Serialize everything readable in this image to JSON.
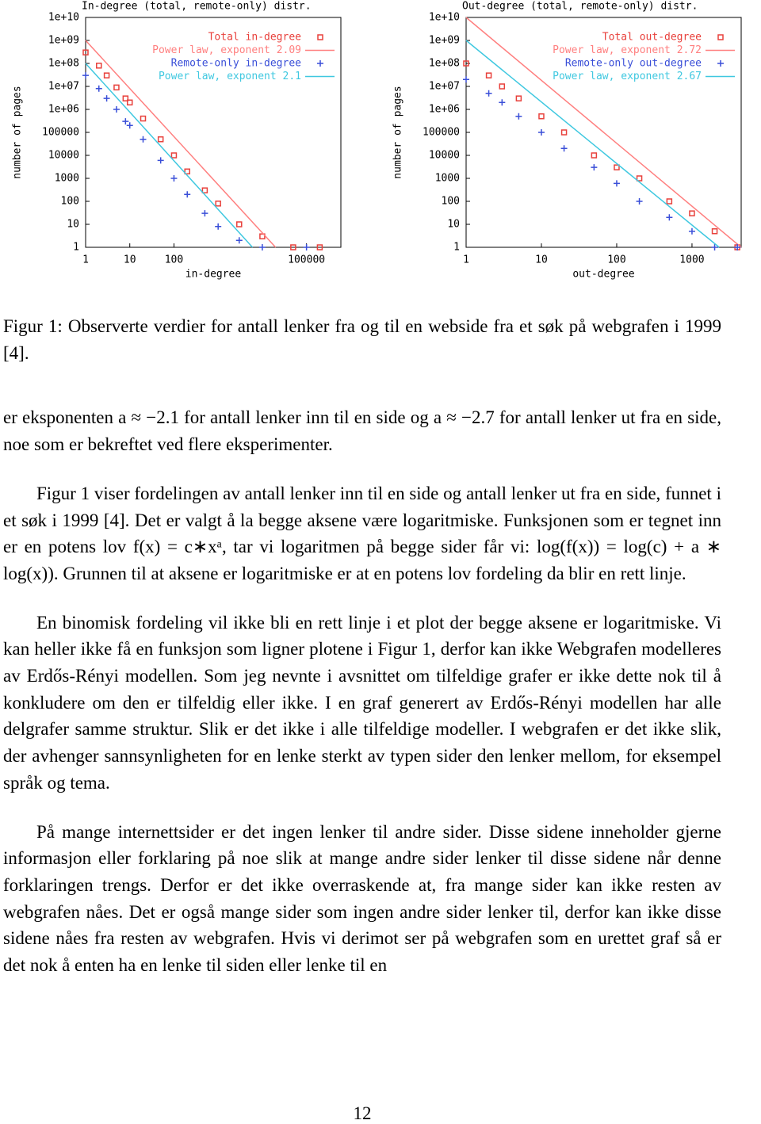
{
  "chart_data": [
    {
      "type": "scatter",
      "title": "In-degree (total, remote-only) distr.",
      "xlabel": "in-degree",
      "ylabel": "number of pages",
      "xlog": true,
      "ylog": true,
      "xlim": [
        1,
        600000
      ],
      "ylim": [
        1,
        10000000000
      ],
      "xticks": [
        1,
        10,
        100,
        100000
      ],
      "yticks": [
        1,
        10,
        100,
        1000,
        10000,
        100000,
        {
          "value": 1000000,
          "label": "1e+06"
        },
        {
          "value": 10000000,
          "label": "1e+07"
        },
        {
          "value": 100000000,
          "label": "1e+08"
        },
        {
          "value": 1000000000,
          "label": "1e+09"
        },
        {
          "value": 10000000000,
          "label": "1e+10"
        }
      ],
      "series": [
        {
          "name": "Total in-degree",
          "color": "#e8413c",
          "marker": "square",
          "x": [
            1,
            2,
            3,
            5,
            8,
            10,
            20,
            50,
            100,
            200,
            500,
            1000,
            3000,
            10000,
            50000,
            200000
          ],
          "values": [
            300000000,
            80000000,
            30000000,
            9000000,
            3000000,
            2000000,
            400000,
            50000,
            10000,
            2000,
            300,
            80,
            10,
            3,
            1,
            1
          ]
        },
        {
          "name": "Power law, exponent 2.09",
          "color": "#ff7f7f",
          "marker": "line",
          "x": [
            1,
            20000
          ],
          "values": [
            1000000000,
            1
          ]
        },
        {
          "name": "Remote-only in-degree",
          "color": "#3a4fd8",
          "marker": "plus",
          "x": [
            1,
            2,
            3,
            5,
            8,
            10,
            20,
            50,
            100,
            200,
            500,
            1000,
            3000,
            10000,
            100000
          ],
          "values": [
            30000000,
            8000000,
            3000000,
            1000000,
            300000,
            200000,
            50000,
            6000,
            1000,
            200,
            30,
            8,
            2,
            1,
            1
          ]
        },
        {
          "name": "Power law, exponent 2.1",
          "color": "#3fc8e0",
          "marker": "line",
          "x": [
            1,
            6000
          ],
          "values": [
            100000000,
            1
          ]
        }
      ]
    },
    {
      "type": "scatter",
      "title": "Out-degree (total, remote-only) distr.",
      "xlabel": "out-degree",
      "ylabel": "number of pages",
      "xlog": true,
      "ylog": true,
      "xlim": [
        1,
        4500
      ],
      "ylim": [
        1,
        10000000000
      ],
      "xticks": [
        1,
        10,
        100,
        1000
      ],
      "yticks": [
        1,
        10,
        100,
        1000,
        10000,
        100000,
        {
          "value": 1000000,
          "label": "1e+06"
        },
        {
          "value": 10000000,
          "label": "1e+07"
        },
        {
          "value": 100000000,
          "label": "1e+08"
        },
        {
          "value": 1000000000,
          "label": "1e+09"
        },
        {
          "value": 10000000000,
          "label": "1e+10"
        }
      ],
      "series": [
        {
          "name": "Total out-degree",
          "color": "#e8413c",
          "marker": "square",
          "x": [
            1,
            2,
            3,
            5,
            10,
            20,
            50,
            100,
            200,
            500,
            1000,
            2000,
            4000
          ],
          "values": [
            100000000,
            30000000,
            10000000,
            3000000,
            500000,
            100000,
            10000,
            3000,
            1000,
            100,
            30,
            5,
            1
          ]
        },
        {
          "name": "Power law, exponent 2.72",
          "color": "#ff7f7f",
          "marker": "line",
          "x": [
            1,
            4500
          ],
          "values": [
            10000000000,
            1
          ]
        },
        {
          "name": "Remote-only out-degree",
          "color": "#3a4fd8",
          "marker": "plus",
          "x": [
            1,
            2,
            3,
            5,
            10,
            20,
            50,
            100,
            200,
            500,
            1000,
            2000,
            4000
          ],
          "values": [
            20000000,
            5000000,
            2000000,
            500000,
            100000,
            20000,
            3000,
            600,
            100,
            20,
            5,
            1,
            1
          ]
        },
        {
          "name": "Power law, exponent 2.67",
          "color": "#3fc8e0",
          "marker": "line",
          "x": [
            1,
            2300
          ],
          "values": [
            1000000000,
            1
          ]
        }
      ]
    }
  ],
  "caption": "Figur 1: Observerte verdier for antall lenker fra og til en webside fra et søk på webgrafen i 1999 [4].",
  "paragraphs": [
    "er eksponenten a ≈ −2.1 for antall lenker inn til en side og a ≈ −2.7 for antall lenker ut fra en side, noe som er bekreftet ved flere eksperimenter.",
    "Figur 1 viser fordelingen av antall lenker inn til en side og antall lenker ut fra en side, funnet i et søk i 1999 [4]. Det er valgt å la begge aksene være logaritmiske. Funksjonen som er tegnet inn er en potens lov f(x) = c∗xᵃ, tar vi logaritmen på begge sider får vi: log(f(x)) = log(c) + a ∗ log(x)). Grunnen til at aksene er logaritmiske er at en potens lov fordeling da blir en rett linje.",
    "En binomisk fordeling vil ikke bli en rett linje i et plot der begge aksene er logaritmiske. Vi kan heller ikke få en funksjon som ligner plotene i Figur 1, derfor kan ikke Webgrafen modelleres av Erdős-Rényi modellen. Som jeg nevnte i avsnittet om tilfeldige grafer er ikke dette nok til å konkludere om den er tilfeldig eller ikke. I en graf generert av Erdős-Rényi modellen har alle delgrafer samme struktur. Slik er det ikke i alle tilfeldige modeller. I webgrafen er det ikke slik, der avhenger sannsynligheten for en lenke sterkt av typen sider den lenker mellom, for eksempel språk og tema.",
    "På mange internettsider er det ingen lenker til andre sider. Disse sidene inneholder gjerne informasjon eller forklaring på noe slik at mange andre sider lenker til disse sidene når denne forklaringen trengs. Derfor er det ikke overraskende at, fra mange sider kan ikke resten av webgrafen nåes. Det er også mange sider som ingen andre sider lenker til, derfor kan ikke disse sidene nåes fra resten av webgrafen. Hvis vi derimot ser på webgrafen som en urettet graf så er det nok å enten ha en lenke til siden eller lenke til en"
  ],
  "page_number": "12"
}
